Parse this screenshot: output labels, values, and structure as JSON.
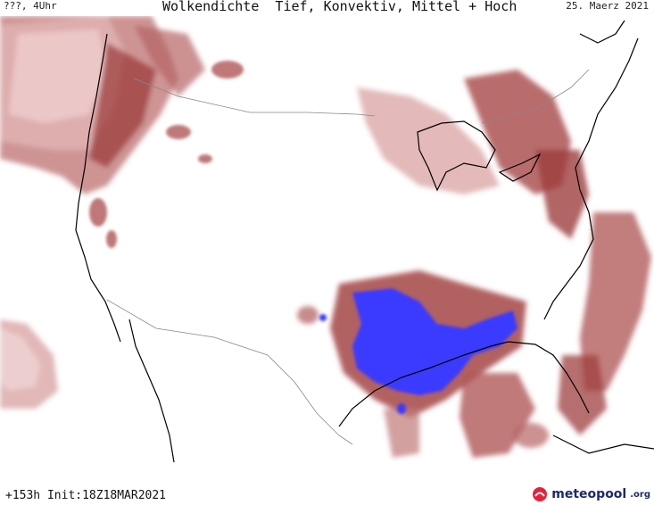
{
  "header": {
    "left_label": "???, 4Uhr",
    "title": "Wolkendichte  Tief, Konvektiv, Mittel + Hoch",
    "date": "25. Maerz 2021"
  },
  "footer": {
    "run_info": "+153h  Init:18Z18MAR2021",
    "brand": "meteopool",
    "brand_ext": ".org"
  },
  "colors": {
    "cloud_light": "#e9c6c6",
    "cloud_mid": "#c98888",
    "cloud_dark": "#9e3e3e",
    "convective": "#3b3bff",
    "coastline": "#000000",
    "border": "#888888"
  },
  "icons": [
    "meteopool-logo-icon"
  ]
}
